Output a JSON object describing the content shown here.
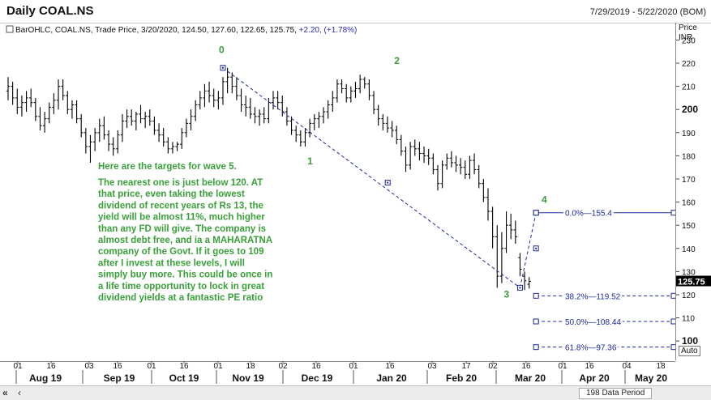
{
  "title": "Daily COAL.NS",
  "date_range": "7/29/2019 - 5/22/2020 (BOM)",
  "legend": {
    "series_label": "BarOHLC, COAL.NS, Trade Price, 3/20/2020, 124.50, 127.60, 122.65, 125.75,",
    "change": "+2.20, (+1.78%)"
  },
  "axis": {
    "price_label": "Price",
    "currency_label": "INR",
    "last_price": "125.75",
    "auto_label": "Auto"
  },
  "status": {
    "data_period": "198 Data Period"
  },
  "colors": {
    "bar": "#000000",
    "wave_label": "#3a9a3a",
    "fib_line": "#1a2a9a",
    "annotation_text": "#3aa03a"
  },
  "annotation": [
    "Here are the targets for wave 5.",
    "The nearest one is just below 120. AT",
    "that price, even taking the lowest",
    "dividend of recent years of Rs 13, the",
    "yield will be almost 11%, much higher",
    "than any FD will give. The company is",
    "almost debt free, and ia a MAHARATNA",
    "company of the Govt. If it goes to 109",
    "after I invest at these levels, I will",
    "simply buy more. This could be once in",
    "a life time opportunity to lock in great",
    "dividend yields at a fantastic PE ratio"
  ],
  "chart_data": {
    "type": "bar",
    "subtype": "ohlc",
    "title": "Daily COAL.NS",
    "ylabel": "Price INR",
    "ylim": [
      92,
      234
    ],
    "y_ticks": [
      {
        "value": 230,
        "label": "230",
        "bold": false
      },
      {
        "value": 220,
        "label": "220",
        "bold": false
      },
      {
        "value": 210,
        "label": "210",
        "bold": false
      },
      {
        "value": 200,
        "label": "200",
        "bold": true
      },
      {
        "value": 190,
        "label": "190",
        "bold": false
      },
      {
        "value": 180,
        "label": "180",
        "bold": false
      },
      {
        "value": 170,
        "label": "170",
        "bold": false
      },
      {
        "value": 160,
        "label": "160",
        "bold": false
      },
      {
        "value": 150,
        "label": "150",
        "bold": false
      },
      {
        "value": 140,
        "label": "140",
        "bold": false
      },
      {
        "value": 130,
        "label": "130",
        "bold": false
      },
      {
        "value": 120,
        "label": "120",
        "bold": false
      },
      {
        "value": 110,
        "label": "110",
        "bold": false
      },
      {
        "value": 100,
        "label": "100",
        "bold": true
      }
    ],
    "x_day_ticks": [
      "01",
      "16",
      "03",
      "16",
      "01",
      "16",
      "01",
      "18",
      "02",
      "16",
      "01",
      "16",
      "03",
      "17",
      "02",
      "16",
      "01",
      "16",
      "04",
      "18"
    ],
    "x_month_labels": [
      "Aug 19",
      "Sep 19",
      "Oct 19",
      "Nov 19",
      "Dec 19",
      "Jan 20",
      "Feb 20",
      "Mar 20",
      "Apr 20",
      "May 20"
    ],
    "ohlc": [
      [
        208,
        214,
        204,
        210
      ],
      [
        210,
        212,
        202,
        205
      ],
      [
        205,
        209,
        198,
        201
      ],
      [
        201,
        206,
        197,
        203
      ],
      [
        203,
        208,
        199,
        205
      ],
      [
        205,
        209,
        201,
        203
      ],
      [
        203,
        205,
        195,
        197
      ],
      [
        197,
        201,
        191,
        193
      ],
      [
        193,
        199,
        190,
        196
      ],
      [
        196,
        203,
        194,
        201
      ],
      [
        201,
        207,
        198,
        204
      ],
      [
        204,
        213,
        200,
        210
      ],
      [
        210,
        213,
        204,
        206
      ],
      [
        206,
        208,
        198,
        200
      ],
      [
        200,
        204,
        196,
        202
      ],
      [
        202,
        204,
        194,
        196
      ],
      [
        196,
        198,
        188,
        190
      ],
      [
        190,
        192,
        181,
        184
      ],
      [
        184,
        189,
        177,
        186
      ],
      [
        186,
        192,
        182,
        190
      ],
      [
        190,
        196,
        186,
        193
      ],
      [
        193,
        197,
        187,
        189
      ],
      [
        189,
        191,
        182,
        185
      ],
      [
        185,
        188,
        180,
        183
      ],
      [
        183,
        191,
        181,
        189
      ],
      [
        189,
        198,
        186,
        195
      ],
      [
        195,
        200,
        192,
        197
      ],
      [
        197,
        200,
        193,
        195
      ],
      [
        195,
        199,
        191,
        198
      ],
      [
        198,
        202,
        194,
        196
      ],
      [
        196,
        199,
        192,
        197
      ],
      [
        197,
        200,
        193,
        195
      ],
      [
        195,
        197,
        189,
        191
      ],
      [
        191,
        194,
        186,
        189
      ],
      [
        189,
        192,
        184,
        186
      ],
      [
        186,
        188,
        181,
        183
      ],
      [
        183,
        186,
        181,
        184
      ],
      [
        184,
        186,
        182,
        185
      ],
      [
        185,
        192,
        183,
        190
      ],
      [
        190,
        196,
        188,
        194
      ],
      [
        194,
        200,
        191,
        197
      ],
      [
        197,
        204,
        195,
        202
      ],
      [
        202,
        208,
        200,
        205
      ],
      [
        205,
        211,
        201,
        208
      ],
      [
        208,
        212,
        203,
        206
      ],
      [
        206,
        209,
        201,
        204
      ],
      [
        204,
        208,
        200,
        205
      ],
      [
        205,
        214,
        202,
        212
      ],
      [
        212,
        218,
        207,
        214
      ],
      [
        214,
        216,
        207,
        210
      ],
      [
        210,
        214,
        204,
        206
      ],
      [
        206,
        209,
        199,
        202
      ],
      [
        202,
        206,
        197,
        201
      ],
      [
        201,
        205,
        196,
        198
      ],
      [
        198,
        201,
        194,
        197
      ],
      [
        197,
        200,
        193,
        198
      ],
      [
        198,
        201,
        194,
        196
      ],
      [
        196,
        205,
        194,
        203
      ],
      [
        203,
        208,
        200,
        205
      ],
      [
        205,
        208,
        200,
        203
      ],
      [
        203,
        206,
        197,
        199
      ],
      [
        199,
        201,
        193,
        195
      ],
      [
        195,
        197,
        189,
        191
      ],
      [
        191,
        193,
        186,
        189
      ],
      [
        189,
        191,
        184,
        186
      ],
      [
        186,
        192,
        184,
        190
      ],
      [
        190,
        196,
        188,
        194
      ],
      [
        194,
        198,
        191,
        196
      ],
      [
        196,
        199,
        192,
        197
      ],
      [
        197,
        201,
        194,
        199
      ],
      [
        199,
        204,
        196,
        202
      ],
      [
        202,
        208,
        199,
        205
      ],
      [
        205,
        213,
        203,
        211
      ],
      [
        211,
        213,
        207,
        209
      ],
      [
        209,
        211,
        203,
        205
      ],
      [
        205,
        210,
        203,
        208
      ],
      [
        208,
        212,
        205,
        209
      ],
      [
        209,
        215,
        207,
        213
      ],
      [
        213,
        214,
        209,
        211
      ],
      [
        211,
        213,
        204,
        206
      ],
      [
        206,
        208,
        198,
        200
      ],
      [
        200,
        202,
        193,
        196
      ],
      [
        196,
        198,
        191,
        194
      ],
      [
        194,
        197,
        190,
        192
      ],
      [
        192,
        195,
        188,
        191
      ],
      [
        191,
        193,
        185,
        187
      ],
      [
        187,
        189,
        180,
        182
      ],
      [
        182,
        184,
        173,
        176
      ],
      [
        176,
        186,
        174,
        184
      ],
      [
        184,
        187,
        180,
        183
      ],
      [
        183,
        186,
        178,
        181
      ],
      [
        181,
        184,
        177,
        180
      ],
      [
        180,
        183,
        176,
        179
      ],
      [
        179,
        181,
        172,
        174
      ],
      [
        174,
        176,
        165,
        168
      ],
      [
        168,
        178,
        166,
        176
      ],
      [
        176,
        181,
        174,
        179
      ],
      [
        179,
        182,
        175,
        177
      ],
      [
        177,
        180,
        173,
        176
      ],
      [
        176,
        179,
        172,
        175
      ],
      [
        175,
        178,
        170,
        172
      ],
      [
        172,
        180,
        170,
        178
      ],
      [
        178,
        181,
        172,
        174
      ],
      [
        174,
        176,
        166,
        168
      ],
      [
        168,
        170,
        160,
        162
      ],
      [
        162,
        166,
        152,
        156
      ],
      [
        156,
        158,
        140,
        145
      ],
      [
        145,
        150,
        123,
        128
      ],
      [
        128,
        147,
        125,
        140
      ],
      [
        140,
        156,
        138,
        150
      ],
      [
        150,
        155,
        144,
        148
      ],
      [
        148,
        152,
        142,
        145
      ],
      [
        136,
        138,
        128,
        131
      ],
      [
        128,
        130,
        122,
        126
      ],
      [
        124.5,
        127.6,
        122.65,
        125.75
      ]
    ],
    "wave_labels": [
      {
        "label": "0",
        "x_index": 47,
        "price": 218
      },
      {
        "label": "1",
        "x_index": 66,
        "price": 184
      },
      {
        "label": "2",
        "x_index": 85,
        "price": 214
      },
      {
        "label": "3",
        "x_index": 112,
        "price": 123
      },
      {
        "label": "4",
        "x_index": 116,
        "price": 155.4
      }
    ],
    "fib_levels": [
      {
        "label": "0.0%",
        "value": 155.4,
        "value_label": "155.4"
      },
      {
        "label": "38.2%",
        "value": 119.52,
        "value_label": "119.52"
      },
      {
        "label": "50.0%",
        "value": 108.44,
        "value_label": "108.44"
      },
      {
        "label": "61.8%",
        "value": 97.36,
        "value_label": "97.36"
      }
    ]
  }
}
